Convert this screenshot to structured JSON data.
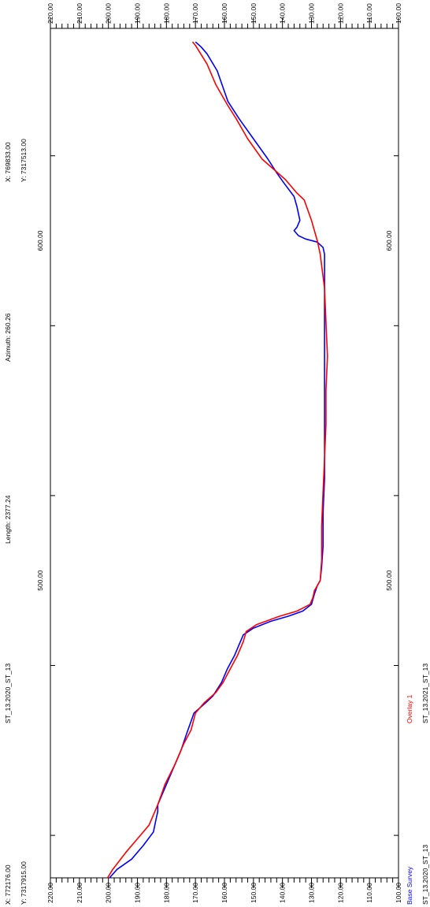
{
  "chart_data": {
    "type": "line",
    "info": {
      "start_x": "X: 772176.00",
      "start_y": "Y: 7317915.00",
      "profile_name": "ST_13.2020_ST_13",
      "length": "Length: 2377.24",
      "azimuth": "Azimuth: 260.26",
      "end_x": "X: 769833.00",
      "end_y": "Y: 7317513.00"
    },
    "legend_position": "bottom-left",
    "distance_ticks": [
      "500.00",
      "600.00"
    ],
    "distance_range": [
      412.5,
      662.5
    ],
    "elevation_range": [
      100,
      220
    ],
    "elevation_ticks": [
      "220.00",
      "210.00",
      "200.00",
      "190.00",
      "180.00",
      "170.00",
      "160.00",
      "150.00",
      "140.00",
      "130.00",
      "120.00",
      "110.00",
      "100.00"
    ],
    "colors": {
      "base": "#0000ff",
      "overlay": "#ff0000",
      "axis": "#000000"
    },
    "series": [
      {
        "name": "Base Survey",
        "subname": "ST_13.2020_ST_13",
        "color": "#0000ff",
        "x": [
          412.5,
          415,
          418,
          422,
          426,
          430,
          432,
          434,
          440,
          446,
          450,
          455,
          461,
          464,
          466,
          470,
          474,
          478,
          481,
          484,
          486,
          488,
          489.5,
          491,
          493,
          496,
          498.5,
          500,
          504,
          510,
          520,
          530,
          540,
          550,
          560,
          570,
          580,
          590,
          594,
          596,
          598,
          599.6,
          600.5,
          601.5,
          603,
          604,
          606,
          610,
          613,
          617,
          620,
          624,
          630,
          636,
          641,
          650,
          655,
          657,
          658.5
        ],
        "y": [
          199.6,
          197,
          192,
          188,
          184.5,
          183.5,
          183,
          183,
          180,
          177,
          175,
          173,
          170.5,
          166.5,
          164,
          161,
          159,
          156.5,
          155,
          153.5,
          150,
          144,
          138,
          133,
          130,
          129,
          128,
          127,
          126.5,
          126,
          126,
          125.5,
          125.5,
          125.5,
          125.5,
          125.5,
          125.5,
          125.5,
          125.5,
          125.5,
          126,
          128,
          132,
          134.5,
          136,
          135,
          134,
          135,
          136,
          139.5,
          142,
          145,
          150,
          155,
          158.8,
          162.5,
          166,
          168,
          170
        ]
      },
      {
        "name": "Overlay 1",
        "subname": "ST_13.2021_ST_13",
        "color": "#ff0000",
        "x": [
          412.5,
          415,
          420,
          425,
          428,
          431,
          434,
          440,
          446,
          452,
          456,
          461,
          464,
          467,
          470,
          474,
          478,
          482,
          485,
          487,
          489.5,
          491,
          493,
          495,
          497,
          498.5,
          500,
          506,
          516,
          526,
          536,
          546,
          556,
          566,
          576,
          586,
          596,
          600,
          606,
          612,
          614,
          618,
          621,
          624,
          630,
          636,
          640,
          646,
          652,
          657.5,
          658.5
        ],
        "y": [
          200.3,
          198.5,
          194,
          189,
          186,
          184.5,
          183,
          180.5,
          177,
          174,
          171.5,
          170,
          167,
          163,
          160.5,
          158,
          155.5,
          153.5,
          152.5,
          149,
          141,
          135,
          130.5,
          129.5,
          129,
          128,
          127,
          126.5,
          126.5,
          126,
          125.5,
          125,
          125,
          124.5,
          125,
          125.5,
          127,
          128,
          130,
          132.5,
          135,
          139,
          143,
          147,
          152,
          156,
          159,
          163,
          166,
          170,
          171
        ]
      }
    ]
  }
}
